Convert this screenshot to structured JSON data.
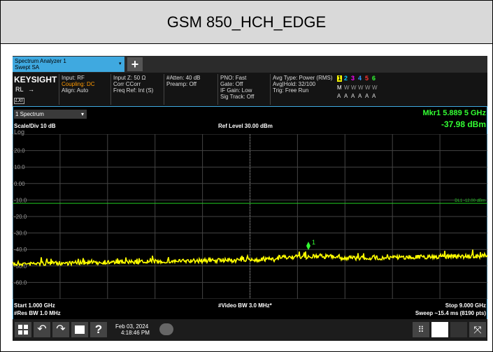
{
  "header": {
    "title": "GSM 850_HCH_EDGE"
  },
  "tab": {
    "name": "Spectrum Analyzer 1",
    "mode": "Swept SA",
    "add": "+"
  },
  "info": {
    "brand": "KEYSIGHT",
    "rl": "RL",
    "lxi": "LXI",
    "columns": [
      [
        "Input: RF",
        "Coupling: DC",
        "Align: Auto"
      ],
      [
        "Input Z: 50 Ω",
        "Corr CCorr",
        "Freq Ref: Int (S)"
      ],
      [
        "#Atten: 40 dB",
        "Preamp: Off"
      ],
      [
        "PNO: Fast",
        "Gate: Off",
        "IF Gain: Low",
        "Sig Track: Off"
      ],
      [
        "Avg Type: Power (RMS)",
        "Avg|Hold: 32/100",
        "Trig: Free Run"
      ]
    ],
    "traces": [
      "1",
      "2",
      "3",
      "4",
      "5",
      "6"
    ],
    "trace_types": [
      "M",
      "W",
      "W",
      "W",
      "W",
      "W"
    ],
    "trace_detectors": [
      "A",
      "A",
      "A",
      "A",
      "A",
      "A"
    ]
  },
  "window": {
    "name": "1 Spectrum",
    "marker": "Mkr1  5.889 5 GHz",
    "marker_level": "-37.98 dBm",
    "scale": "Scale/Div 10 dB",
    "ref_level": "Ref Level 30.00 dBm",
    "log": "Log",
    "y_labels": [
      "20.0",
      "10.0",
      "0.00",
      "-10.0",
      "-20.0",
      "-30.0",
      "-40.0",
      "-50.0",
      "-60.0"
    ],
    "display_line": "DL1 -12.00 dBm",
    "marker_label": "1",
    "start": "Start 1.000 GHz",
    "video_bw": "#Video BW 3.0 MHz*",
    "stop": "Stop 9.000 GHz",
    "res_bw": "#Res BW 1.0 MHz",
    "sweep": "Sweep ~15.4 ms (8190 pts)"
  },
  "taskbar": {
    "help": "?",
    "date": "Feb 03, 2024",
    "time": "4:18:46 PM"
  }
}
